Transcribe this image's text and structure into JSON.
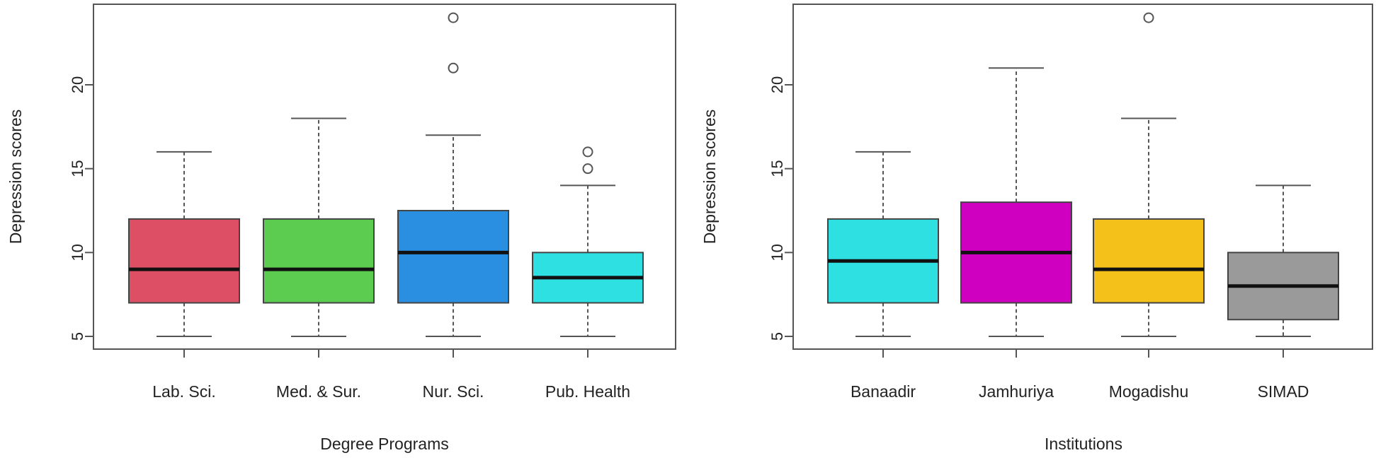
{
  "chart_data": [
    {
      "type": "boxplot",
      "title": "",
      "xlabel": "Degree Programs",
      "ylabel": "Depression scores",
      "ylim": [
        4,
        25
      ],
      "yticks": [
        5,
        10,
        15,
        20
      ],
      "categories": [
        "Lab. Sci.",
        "Med. & Sur.",
        "Nur. Sci.",
        "Pub. Health"
      ],
      "boxes": [
        {
          "name": "Lab. Sci.",
          "min": 5,
          "q1": 7,
          "median": 9,
          "q3": 12,
          "max": 16,
          "outliers": [],
          "color": "#dc4f64"
        },
        {
          "name": "Med. & Sur.",
          "min": 5,
          "q1": 7,
          "median": 9,
          "q3": 12,
          "max": 18,
          "outliers": [],
          "color": "#5ccc50"
        },
        {
          "name": "Nur. Sci.",
          "min": 5,
          "q1": 7,
          "median": 10,
          "q3": 12.5,
          "max": 17,
          "outliers": [
            21,
            24
          ],
          "color": "#2a8fe0"
        },
        {
          "name": "Pub. Health",
          "min": 5,
          "q1": 7,
          "median": 8.5,
          "q3": 10,
          "max": 14,
          "outliers": [
            15,
            16
          ],
          "color": "#2ee0e2"
        }
      ]
    },
    {
      "type": "boxplot",
      "title": "",
      "xlabel": "Institutions",
      "ylabel": "Depression scores",
      "ylim": [
        4,
        25
      ],
      "yticks": [
        5,
        10,
        15,
        20
      ],
      "categories": [
        "Banaadir",
        "Jamhuriya",
        "Mogadishu",
        "SIMAD"
      ],
      "boxes": [
        {
          "name": "Banaadir",
          "min": 5,
          "q1": 7,
          "median": 9.5,
          "q3": 12,
          "max": 16,
          "outliers": [],
          "color": "#2ee0e2"
        },
        {
          "name": "Jamhuriya",
          "min": 5,
          "q1": 7,
          "median": 10,
          "q3": 13,
          "max": 21,
          "outliers": [],
          "color": "#d000c0"
        },
        {
          "name": "Mogadishu",
          "min": 5,
          "q1": 7,
          "median": 9,
          "q3": 12,
          "max": 18,
          "outliers": [
            24
          ],
          "color": "#f4c01a"
        },
        {
          "name": "SIMAD",
          "min": 5,
          "q1": 6,
          "median": 8,
          "q3": 10,
          "max": 14,
          "outliers": [],
          "color": "#9a9a9a"
        }
      ]
    }
  ]
}
